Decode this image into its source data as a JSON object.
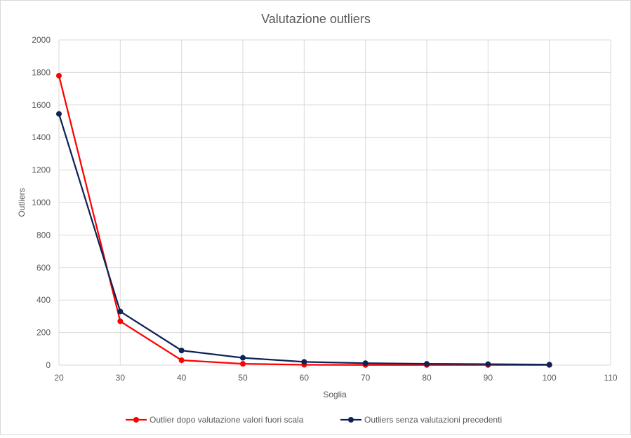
{
  "chart_data": {
    "type": "scatter",
    "title": "Valutazione outliers",
    "xlabel": "Soglia",
    "ylabel": "Outliers",
    "xlim": [
      20,
      110
    ],
    "ylim": [
      0,
      2000
    ],
    "x_ticks": [
      20,
      30,
      40,
      50,
      60,
      70,
      80,
      90,
      100,
      110
    ],
    "y_ticks": [
      0,
      200,
      400,
      600,
      800,
      1000,
      1200,
      1400,
      1600,
      1800,
      2000
    ],
    "grid": true,
    "legend_position": "bottom",
    "series": [
      {
        "name": "Outlier dopo valutazione valori fuori scala",
        "color": "#ff0000",
        "x": [
          20,
          30,
          40,
          50,
          60,
          70,
          80,
          90,
          100
        ],
        "y": [
          1780,
          270,
          30,
          8,
          2,
          1,
          1,
          1,
          1
        ]
      },
      {
        "name": "Outliers senza valutazioni precedenti",
        "color": "#0d2356",
        "x": [
          20,
          30,
          40,
          50,
          60,
          70,
          80,
          90,
          100
        ],
        "y": [
          1545,
          330,
          90,
          45,
          20,
          12,
          8,
          6,
          3
        ]
      }
    ]
  }
}
